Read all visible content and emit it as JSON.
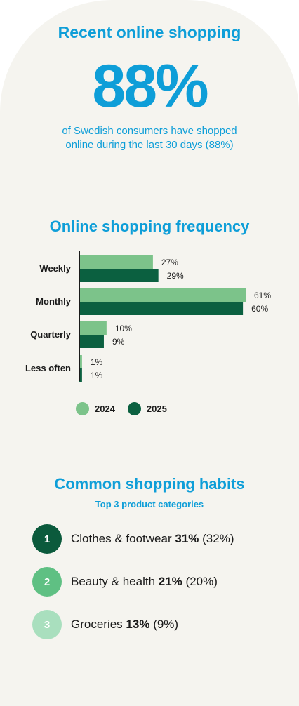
{
  "colors": {
    "accent_blue": "#0e9ed8",
    "series_2024": "#7cc38a",
    "series_2025": "#0b6040",
    "badge_1": "#0b5a3c",
    "badge_2": "#5fc083",
    "badge_3": "#a9dfbe",
    "background": "#f5f4ef"
  },
  "section1": {
    "title": "Recent online shopping",
    "big_value": "88%",
    "description_line1": "of Swedish consumers have shopped",
    "description_line2": "online during the last 30 days (88%)"
  },
  "section2": {
    "title": "Online shopping frequency"
  },
  "chart_data": {
    "type": "bar",
    "orientation": "horizontal",
    "categories": [
      "Weekly",
      "Monthly",
      "Quarterly",
      "Less often"
    ],
    "series": [
      {
        "name": "2024",
        "values": [
          27,
          61,
          10,
          1
        ],
        "labels": [
          "27%",
          "61%",
          "10%",
          "1%"
        ],
        "color": "#7cc38a"
      },
      {
        "name": "2025",
        "values": [
          29,
          60,
          9,
          1
        ],
        "labels": [
          "29%",
          "60%",
          "9%",
          "1%"
        ],
        "color": "#0b6040"
      }
    ],
    "xlim": [
      0,
      61
    ],
    "unit": "%",
    "grid": false,
    "legend": "bottom"
  },
  "legend": {
    "items": [
      {
        "label": "2024",
        "color": "#7cc38a"
      },
      {
        "label": "2025",
        "color": "#0b6040"
      }
    ]
  },
  "section3": {
    "title": "Common shopping habits",
    "subtitle": "Top 3 product categories",
    "items": [
      {
        "rank": "1",
        "name": "Clothes & footwear",
        "value": "31%",
        "prev": "(32%)",
        "color": "#0b5a3c"
      },
      {
        "rank": "2",
        "name": "Beauty & health",
        "value": "21%",
        "prev": "(20%)",
        "color": "#5fc083"
      },
      {
        "rank": "3",
        "name": "Groceries",
        "value": "13%",
        "prev": "(9%)",
        "color": "#a9dfbe"
      }
    ]
  }
}
